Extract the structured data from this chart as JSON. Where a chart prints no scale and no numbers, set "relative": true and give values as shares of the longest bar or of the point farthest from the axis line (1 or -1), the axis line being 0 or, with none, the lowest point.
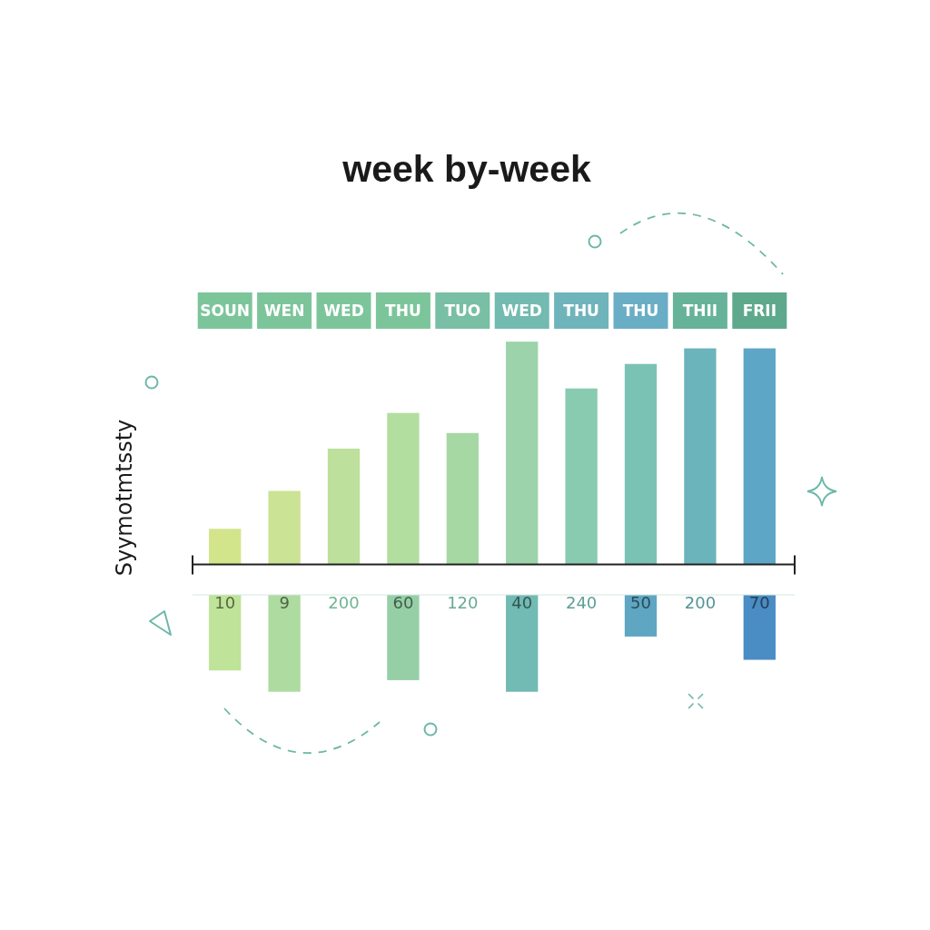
{
  "chart_data": [
    {
      "type": "bar",
      "title": "week by-week",
      "ylabel": "Syymotmtssty",
      "categories": [
        "SOUN",
        "WEN",
        "WED",
        "THU",
        "TUO",
        "WED",
        "THU",
        "THU",
        "THII",
        "FRII"
      ],
      "relative": true,
      "colors": [
        "#d3e58b",
        "#cbe394",
        "#bde09c",
        "#b2dea0",
        "#a6d8a4",
        "#9cd3aa",
        "#88cbb0",
        "#7ac2b4",
        "#6cb4bc",
        "#5ea6c6"
      ],
      "values": [
        0.16,
        0.33,
        0.52,
        0.68,
        0.59,
        1,
        0.79,
        0.9,
        0.97,
        0.97
      ]
    },
    {
      "type": "bar",
      "categories": [
        "10",
        "9",
        "200",
        "60",
        "120",
        "40",
        "240",
        "50",
        "200",
        "70"
      ],
      "relative": true,
      "colors": [
        "#bfe398",
        "#aedba0",
        null,
        "#96cfa6",
        null,
        "#72bab4",
        null,
        "#5ea6c2",
        null,
        "#4a8cc4"
      ],
      "values": [
        -0.78,
        -1,
        null,
        -0.88,
        null,
        -1,
        null,
        -0.43,
        null,
        -0.67
      ]
    }
  ]
}
